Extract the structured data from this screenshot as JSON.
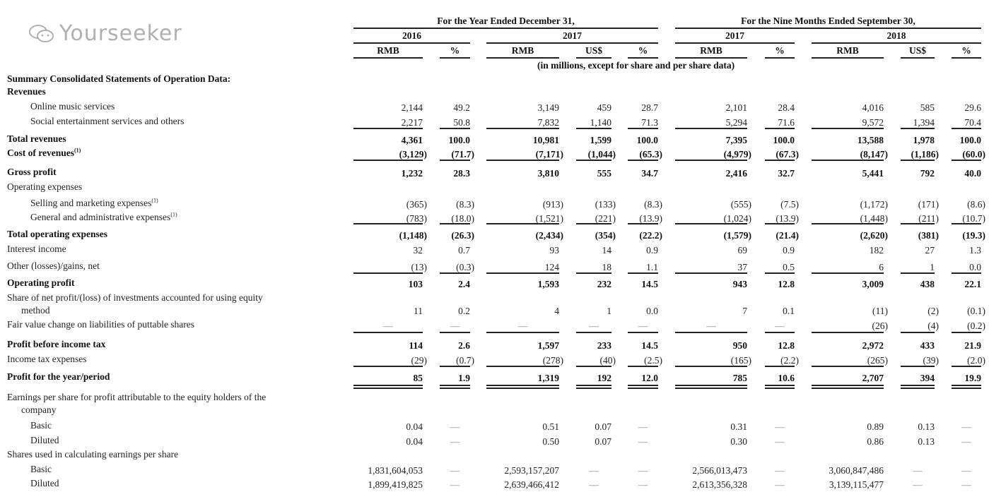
{
  "header": {
    "group_year": "For the Year Ended December 31,",
    "group_nine": "For the Nine Months Ended September 30,",
    "years": [
      "2016",
      "2017",
      "2017",
      "2018"
    ],
    "columns": [
      "RMB",
      "%",
      "RMB",
      "US$",
      "%",
      "RMB",
      "%",
      "RMB",
      "US$",
      "%"
    ],
    "units_note": "(in millions, except for share and per share data)"
  },
  "rows": [
    {
      "label": "Summary Consolidated Statements of Operation Data:",
      "values": []
    },
    {
      "label": "Revenues",
      "values": []
    },
    {
      "label": "Online music services",
      "values": [
        "2,144",
        "49.2",
        "3,149",
        "459",
        "28.7",
        "2,101",
        "28.4",
        "4,016",
        "585",
        "29.6"
      ]
    },
    {
      "label": "Social entertainment services and others",
      "values": [
        "2,217",
        "50.8",
        "7,832",
        "1,140",
        "71.3",
        "5,294",
        "71.6",
        "9,572",
        "1,394",
        "70.4"
      ]
    },
    {
      "label": "Total revenues",
      "values": [
        "4,361",
        "100.0",
        "10,981",
        "1,599",
        "100.0",
        "7,395",
        "100.0",
        "13,588",
        "1,978",
        "100.0"
      ]
    },
    {
      "label": "Cost of revenues",
      "footnote": "(1)",
      "values": [
        "(3,129)",
        "(71.7)",
        "(7,171)",
        "(1,044)",
        "(65.3)",
        "(4,979)",
        "(67.3)",
        "(8,147)",
        "(1,186)",
        "(60.0)"
      ]
    },
    {
      "label": "Gross profit",
      "values": [
        "1,232",
        "28.3",
        "3,810",
        "555",
        "34.7",
        "2,416",
        "32.7",
        "5,441",
        "792",
        "40.0"
      ]
    },
    {
      "label": "Operating expenses",
      "values": []
    },
    {
      "label": "Selling and marketing expenses",
      "footnote": "(1)",
      "values": [
        "(365)",
        "(8.3)",
        "(913)",
        "(133)",
        "(8.3)",
        "(555)",
        "(7.5)",
        "(1,172)",
        "(171)",
        "(8.6)"
      ]
    },
    {
      "label": "General and administrative expenses",
      "footnote": "(1)",
      "values": [
        "(783)",
        "(18.0)",
        "(1,521)",
        "(221)",
        "(13.9)",
        "(1,024)",
        "(13.9)",
        "(1,448)",
        "(211)",
        "(10.7)"
      ]
    },
    {
      "label": "Total operating expenses",
      "values": [
        "(1,148)",
        "(26.3)",
        "(2,434)",
        "(354)",
        "(22.2)",
        "(1,579)",
        "(21.4)",
        "(2,620)",
        "(381)",
        "(19.3)"
      ]
    },
    {
      "label": "Interest income",
      "values": [
        "32",
        "0.7",
        "93",
        "14",
        "0.9",
        "69",
        "0.9",
        "182",
        "27",
        "1.3"
      ]
    },
    {
      "label": "Other (losses)/gains, net",
      "values": [
        "(13)",
        "(0.3)",
        "124",
        "18",
        "1.1",
        "37",
        "0.5",
        "6",
        "1",
        "0.0"
      ]
    },
    {
      "label": "Operating profit",
      "values": [
        "103",
        "2.4",
        "1,593",
        "232",
        "14.5",
        "943",
        "12.8",
        "3,009",
        "438",
        "22.1"
      ]
    },
    {
      "label": "Share of net profit/(loss) of investments accounted for using equity",
      "label2": "method",
      "values": [
        "11",
        "0.2",
        "4",
        "1",
        "0.0",
        "7",
        "0.1",
        "(11)",
        "(2)",
        "(0.1)"
      ]
    },
    {
      "label": "Fair value change on liabilities of puttable shares",
      "values": [
        "—",
        "—",
        "—",
        "—",
        "—",
        "—",
        "—",
        "(26)",
        "(4)",
        "(0.2)"
      ]
    },
    {
      "label": "Profit before income tax",
      "values": [
        "114",
        "2.6",
        "1,597",
        "233",
        "14.5",
        "950",
        "12.8",
        "2,972",
        "433",
        "21.9"
      ]
    },
    {
      "label": "Income tax expenses",
      "values": [
        "(29)",
        "(0.7)",
        "(278)",
        "(40)",
        "(2.5)",
        "(165)",
        "(2.2)",
        "(265)",
        "(39)",
        "(2.0)"
      ]
    },
    {
      "label": "Profit for the year/period",
      "values": [
        "85",
        "1.9",
        "1,319",
        "192",
        "12.0",
        "785",
        "10.6",
        "2,707",
        "394",
        "19.9"
      ]
    },
    {
      "label": "Earnings per share for profit attributable to the equity holders of the",
      "label2": "company",
      "values": []
    },
    {
      "label": "Basic",
      "values": [
        "0.04",
        "—",
        "0.51",
        "0.07",
        "—",
        "0.31",
        "—",
        "0.89",
        "0.13",
        "—"
      ]
    },
    {
      "label": "Diluted",
      "values": [
        "0.04",
        "—",
        "0.50",
        "0.07",
        "—",
        "0.30",
        "—",
        "0.86",
        "0.13",
        "—"
      ]
    },
    {
      "label": "Shares used in calculating earnings per share",
      "values": []
    },
    {
      "label": "Basic",
      "values": [
        "1,831,604,053",
        "—",
        "2,593,157,207",
        "—",
        "—",
        "2,566,013,473",
        "—",
        "3,060,847,486",
        "—",
        "—"
      ]
    },
    {
      "label": "Diluted",
      "values": [
        "1,899,419,825",
        "—",
        "2,639,466,412",
        "—",
        "—",
        "2,613,356,328",
        "—",
        "3,139,115,477",
        "—",
        "—"
      ]
    }
  ],
  "watermark": {
    "text": "Yourseeker",
    "icon": "wechat-icon"
  }
}
